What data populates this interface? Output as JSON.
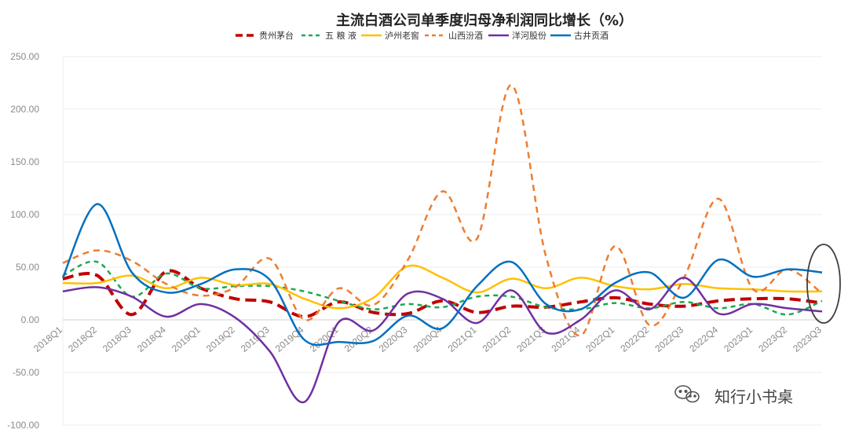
{
  "chart_data": {
    "type": "line",
    "title": "主流白酒公司单季度归母净利润同比增长（%）",
    "categories": [
      "2018Q1",
      "2018Q2",
      "2018Q3",
      "2018Q4",
      "2019Q1",
      "2019Q2",
      "2019Q3",
      "2019Q4",
      "2020Q1",
      "2020Q2",
      "2020Q3",
      "2020Q4",
      "2021Q1",
      "2021Q2",
      "2021Q3",
      "2021Q4",
      "2022Q1",
      "2022Q2",
      "2022Q3",
      "2022Q4",
      "2023Q1",
      "2023Q2",
      "2023Q3"
    ],
    "ylim": [
      -100,
      250
    ],
    "yticks": [
      "250.00",
      "200.00",
      "150.00",
      "100.00",
      "50.00",
      "0.00",
      "-50.00",
      "-100.00"
    ],
    "grid": true,
    "legend_position": "top",
    "series": [
      {
        "name": "贵州茅台",
        "color": "#c00000",
        "dash": "14,7",
        "width": 4,
        "values": [
          39,
          42,
          5,
          46,
          30,
          20,
          17,
          3,
          17,
          7,
          6,
          18,
          7,
          13,
          12,
          17,
          21,
          15,
          13,
          18,
          20,
          20,
          16
        ]
      },
      {
        "name": "五 粮 液",
        "color": "#1aaa50",
        "dash": "6,5",
        "width": 2.5,
        "values": [
          42,
          55,
          22,
          44,
          30,
          32,
          32,
          27,
          18,
          10,
          15,
          12,
          22,
          22,
          12,
          10,
          16,
          11,
          17,
          11,
          15,
          5,
          18
        ]
      },
      {
        "name": "泸州老窖",
        "color": "#ffc000",
        "dash": "",
        "width": 2.5,
        "values": [
          35,
          35,
          42,
          30,
          40,
          33,
          34,
          20,
          11,
          21,
          51,
          40,
          26,
          39,
          30,
          40,
          32,
          29,
          34,
          30,
          29,
          27,
          27
        ]
      },
      {
        "name": "山西汾酒",
        "color": "#ed7d31",
        "dash": "8,6",
        "width": 2.5,
        "values": [
          54,
          66,
          56,
          34,
          23,
          31,
          58,
          0,
          30,
          14,
          57,
          122,
          77,
          223,
          60,
          -15,
          70,
          -5,
          40,
          115,
          29,
          48,
          25
        ]
      },
      {
        "name": "洋河股份",
        "color": "#7030a0",
        "dash": "",
        "width": 2.5,
        "values": [
          27,
          31,
          22,
          3,
          15,
          2,
          -30,
          -78,
          -2,
          -10,
          25,
          20,
          -3,
          28,
          -12,
          0,
          28,
          10,
          40,
          6,
          15,
          11,
          8
        ]
      },
      {
        "name": "古井贡酒",
        "color": "#0070c0",
        "dash": "",
        "width": 2.5,
        "values": [
          40,
          110,
          45,
          26,
          34,
          48,
          38,
          -19,
          -21,
          -20,
          4,
          -8,
          32,
          55,
          15,
          10,
          35,
          45,
          21,
          57,
          41,
          48,
          45
        ]
      }
    ]
  },
  "watermark": {
    "text": "知行小书桌",
    "icon": "wechat-icon"
  }
}
